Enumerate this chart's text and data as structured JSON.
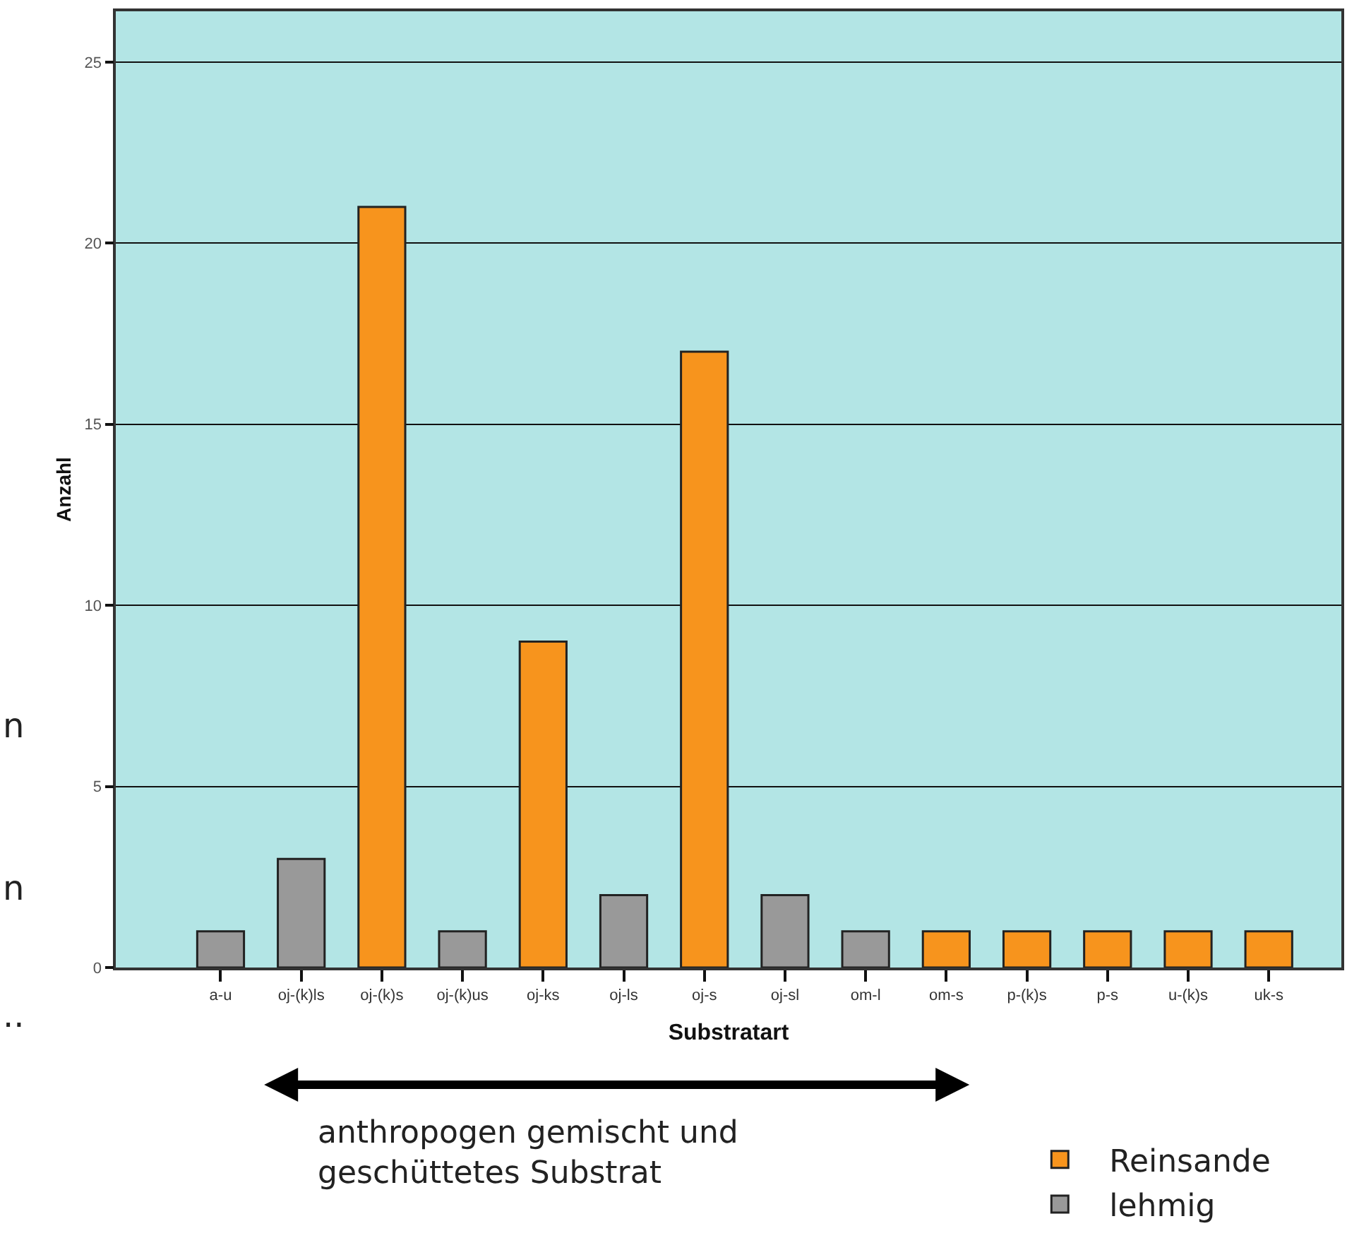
{
  "chart_data": {
    "type": "bar",
    "xlabel": "Substratart",
    "ylabel": "Anzahl",
    "categories": [
      "a-u",
      "oj-(k)ls",
      "oj-(k)s",
      "oj-(k)us",
      "oj-ks",
      "oj-ls",
      "oj-s",
      "oj-sl",
      "om-l",
      "om-s",
      "p-(k)s",
      "p-s",
      "u-(k)s",
      "uk-s"
    ],
    "series": [
      {
        "name": "Reinsande",
        "color": "#f7941d",
        "values": [
          null,
          null,
          21,
          null,
          9,
          null,
          17,
          null,
          null,
          1,
          1,
          1,
          1,
          1
        ]
      },
      {
        "name": "lehmig",
        "color": "#999999",
        "values": [
          1,
          3,
          null,
          1,
          null,
          2,
          null,
          2,
          1,
          null,
          null,
          null,
          null,
          null
        ]
      }
    ],
    "ylim": [
      0,
      26.4
    ],
    "yticks": [
      0,
      5,
      10,
      15,
      20,
      25
    ],
    "grid": "y",
    "legend": "bottom right",
    "annotations": [
      "anthropogen gemischt und\ngeschüttetes Substrat",
      "n",
      "n",
      ".."
    ]
  }
}
